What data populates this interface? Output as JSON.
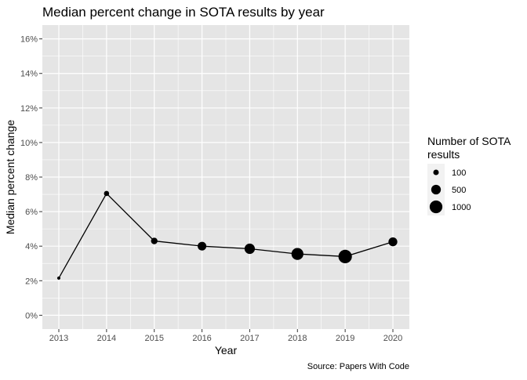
{
  "chart_data": {
    "type": "line",
    "title": "Median percent change in SOTA results by year",
    "xlabel": "Year",
    "ylabel": "Median percent change",
    "caption": "Source: Papers With Code",
    "x": [
      2013,
      2014,
      2015,
      2016,
      2017,
      2018,
      2019,
      2020
    ],
    "y": [
      2.15,
      7.05,
      4.3,
      4.0,
      3.85,
      3.55,
      3.4,
      4.25
    ],
    "point_size": [
      10,
      80,
      170,
      380,
      600,
      860,
      1150,
      400
    ],
    "xticks": [
      "2013",
      "2014",
      "2015",
      "2016",
      "2017",
      "2018",
      "2019",
      "2020"
    ],
    "yticks": [
      "0%",
      "2%",
      "4%",
      "6%",
      "8%",
      "10%",
      "12%",
      "14%",
      "16%"
    ],
    "ylim": [
      -0.8,
      16.8
    ],
    "legend": {
      "title_lines": [
        "Number of SOTA",
        "results"
      ],
      "entries": [
        {
          "label": "100",
          "value": 100
        },
        {
          "label": "500",
          "value": 500
        },
        {
          "label": "1000",
          "value": 1000
        }
      ],
      "position": "right"
    },
    "colors": {
      "panel": "#e5e5e5",
      "grid": "#ffffff",
      "ink": "#000000",
      "tick_text": "#4d4d4d",
      "legend_key": "#f2f2f2"
    }
  }
}
